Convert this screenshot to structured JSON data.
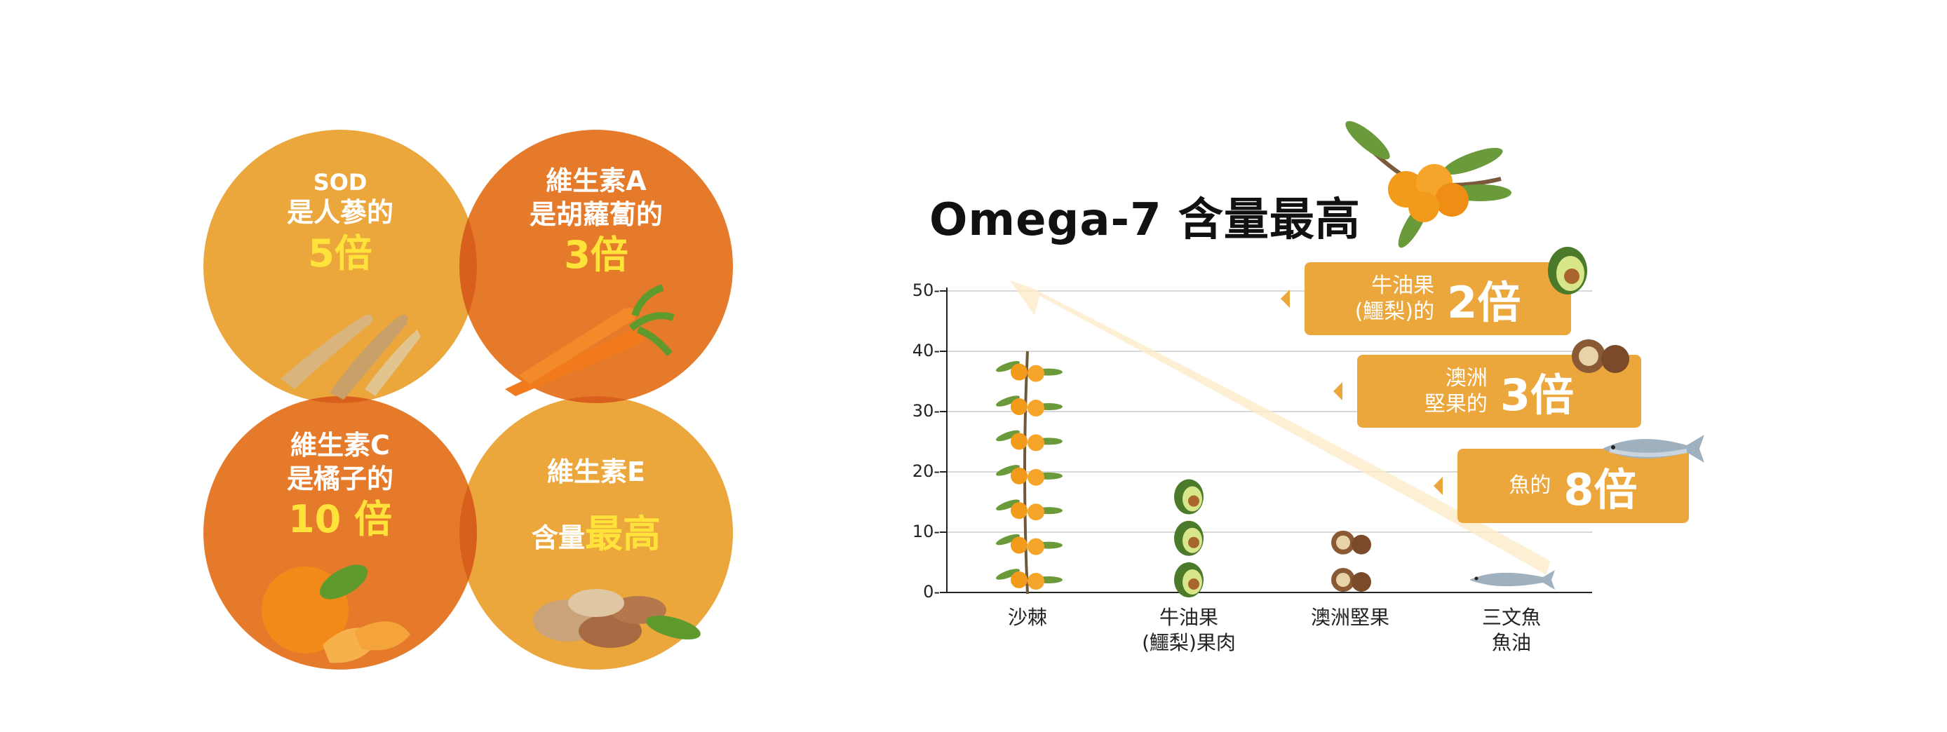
{
  "circles": [
    {
      "lines": [
        "SOD",
        "是人蔘的"
      ],
      "highlight": "5倍",
      "colors": {
        "fill": "#eba63c"
      }
    },
    {
      "lines": [
        "維生素A",
        "是胡蘿蔔的"
      ],
      "highlight": "3倍",
      "colors": {
        "fill": "#e67a2b"
      }
    },
    {
      "lines": [
        "維生素C",
        "是橘子的"
      ],
      "highlight": "10 倍",
      "colors": {
        "fill": "#e67a2b"
      }
    },
    {
      "lines": [
        "維生素E"
      ],
      "prefix": "含量",
      "highlight": "最高",
      "colors": {
        "fill": "#eba63c"
      }
    }
  ],
  "callouts": [
    {
      "caption_lines": [
        "牛油果",
        "(鱷梨)的"
      ],
      "value": "2倍",
      "icon": "avocado-icon"
    },
    {
      "caption_lines": [
        "澳洲",
        "堅果的"
      ],
      "value": "3倍",
      "icon": "macadamia-icon"
    },
    {
      "caption_lines": [
        "魚的"
      ],
      "value": "8倍",
      "icon": "salmon-icon"
    }
  ],
  "colors": {
    "accent": "#eba63c",
    "deep": "#e67a2b",
    "highlight": "#ffe33a",
    "arrow": "#fbe5b8",
    "berry": "#f29a1a",
    "leaf": "#6a9a3a"
  },
  "chart_data": {
    "type": "bar",
    "title": "Omega-7 含量最高",
    "categories": [
      {
        "id": "seabuckthorn",
        "lines": [
          "沙棘"
        ],
        "icon": "sea-buckthorn-icon"
      },
      {
        "id": "avocado",
        "lines": [
          "牛油果",
          "(鱷梨)果肉"
        ],
        "icon": "avocado-icon"
      },
      {
        "id": "macadamia",
        "lines": [
          "澳洲堅果"
        ],
        "icon": "macadamia-icon"
      },
      {
        "id": "salmon",
        "lines": [
          "三文魚",
          "魚油"
        ],
        "icon": "salmon-icon"
      }
    ],
    "values": [
      40,
      20,
      12,
      5
    ],
    "ylim": [
      0,
      50
    ],
    "yticks": [
      0,
      10,
      20,
      30,
      40,
      50
    ],
    "ytick_labels": [
      "0-",
      "10-",
      "20-",
      "30-",
      "40-",
      "50-"
    ],
    "grid": true,
    "xlabel": "",
    "ylabel": ""
  }
}
